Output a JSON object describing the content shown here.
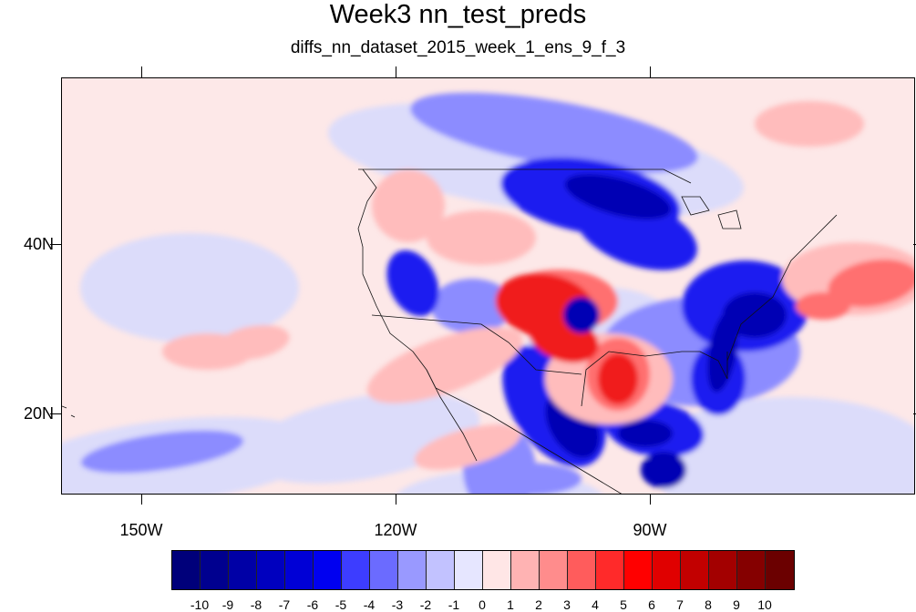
{
  "title": "Week3 nn_test_preds",
  "subtitle": "diffs_nn_dataset_2015_week_1_ens_9_f_3",
  "map": {
    "projection": "cylindrical-equidistant",
    "lon_range": [
      -160,
      -61
    ],
    "lat_range": [
      11,
      60
    ],
    "lat_labels": [
      "40N",
      "20N"
    ],
    "lon_labels": [
      "150W",
      "120W",
      "90W"
    ]
  },
  "colorbar": {
    "labels": [
      "-10",
      "-9",
      "-8",
      "-7",
      "-6",
      "-5",
      "-4",
      "-3",
      "-2",
      "-1",
      "0",
      "1",
      "2",
      "3",
      "4",
      "5",
      "6",
      "7",
      "8",
      "9",
      "10"
    ],
    "colors": [
      "#00007a",
      "#00008f",
      "#0000a6",
      "#0000bf",
      "#0000d6",
      "#0000f0",
      "#3d3dff",
      "#6b6bff",
      "#9999ff",
      "#c2c2ff",
      "#e6e6ff",
      "#ffe6e6",
      "#ffb3b3",
      "#ff8c8c",
      "#ff5c5c",
      "#ff2a2a",
      "#ff0000",
      "#e00000",
      "#c20000",
      "#a30000",
      "#850000",
      "#6b0000"
    ]
  },
  "palette": {
    "ocean_background": "#fde8e8",
    "light_blue": "#dcdcfa",
    "mid_blue": "#8c8cff",
    "strong_blue": "#1e1ef0",
    "deep_blue": "#0000b4",
    "light_red": "#ffbcbc",
    "mid_red": "#ff7070",
    "strong_red": "#f01a1a"
  }
}
